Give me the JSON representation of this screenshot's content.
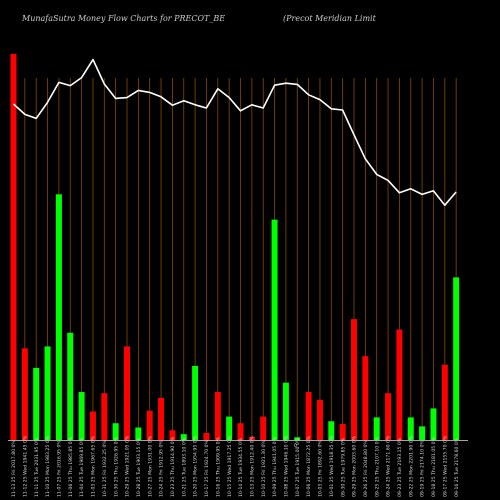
{
  "header": {
    "title_left": "MunafaSutra  Money Flow  Charts for PRECOT_BE",
    "title_right": "(Precot Meridian  Limit"
  },
  "colors": {
    "background": "#000000",
    "gridline": "#8a4a00",
    "up": "#00ff00",
    "down": "#ff0000",
    "line": "#ffffff",
    "axis": "#dddddd"
  },
  "chart_data": {
    "type": "bar",
    "title": "MunafaSutra  Money Flow  Charts for PRECOT_BE",
    "bar_ylim": [
      0,
      100
    ],
    "line_ylim": [
      0,
      100
    ],
    "bars": [
      {
        "value": 99,
        "dir": "down"
      },
      {
        "value": 23.5,
        "dir": "down"
      },
      {
        "value": 18.5,
        "dir": "up"
      },
      {
        "value": 24,
        "dir": "up"
      },
      {
        "value": 63,
        "dir": "up"
      },
      {
        "value": 27.5,
        "dir": "up"
      },
      {
        "value": 12.3,
        "dir": "up"
      },
      {
        "value": 7.3,
        "dir": "down"
      },
      {
        "value": 12,
        "dir": "down"
      },
      {
        "value": 4.3,
        "dir": "up"
      },
      {
        "value": 24,
        "dir": "down"
      },
      {
        "value": 3.2,
        "dir": "up"
      },
      {
        "value": 7.5,
        "dir": "down"
      },
      {
        "value": 10.8,
        "dir": "down"
      },
      {
        "value": 2.5,
        "dir": "down"
      },
      {
        "value": 1.5,
        "dir": "up"
      },
      {
        "value": 19,
        "dir": "up"
      },
      {
        "value": 1.8,
        "dir": "down"
      },
      {
        "value": 12.3,
        "dir": "down"
      },
      {
        "value": 6,
        "dir": "up"
      },
      {
        "value": 4.3,
        "dir": "down"
      },
      {
        "value": 0.8,
        "dir": "down"
      },
      {
        "value": 6,
        "dir": "down"
      },
      {
        "value": 56.5,
        "dir": "up"
      },
      {
        "value": 14.7,
        "dir": "up"
      },
      {
        "value": 0.7,
        "dir": "up"
      },
      {
        "value": 12.3,
        "dir": "down"
      },
      {
        "value": 10.3,
        "dir": "down"
      },
      {
        "value": 4.8,
        "dir": "up"
      },
      {
        "value": 4.1,
        "dir": "down"
      },
      {
        "value": 31,
        "dir": "down"
      },
      {
        "value": 21.5,
        "dir": "down"
      },
      {
        "value": 5.8,
        "dir": "up"
      },
      {
        "value": 12,
        "dir": "down"
      },
      {
        "value": 28.3,
        "dir": "down"
      },
      {
        "value": 5.8,
        "dir": "up"
      },
      {
        "value": 3.5,
        "dir": "up"
      },
      {
        "value": 8.1,
        "dir": "up"
      },
      {
        "value": 19.3,
        "dir": "down"
      },
      {
        "value": 41.7,
        "dir": "up"
      }
    ],
    "line": [
      84,
      81.4,
      80.4,
      84.4,
      89.4,
      88.6,
      90.6,
      95.1,
      89,
      85.4,
      85.6,
      87.4,
      86.9,
      85.8,
      83.7,
      84.8,
      83.8,
      83,
      87.8,
      85.6,
      82.3,
      83.8,
      83,
      88.7,
      89.2,
      88.9,
      86.3,
      85.1,
      82.8,
      82.5,
      76.3,
      70.3,
      66.4,
      64.9,
      61.8,
      62.8,
      61.4,
      62.3,
      58.7,
      62
    ],
    "x_tick_labels": [
      "11-13 25 Fri 2017.80 0%",
      "11-12 25 Wed 1941.45 0%",
      "11-11 25 Tue 2031.95 0%",
      "11-10 25 Mon 1983.25 0%",
      "11-07 25 Fri 2016.95 0%",
      "11-06 25 Thu 1985.85 0%",
      "11-04 25 Tue 1969.85 0%",
      "11-03 25 Mon 1967.65 0%",
      "10-31 25 Fri 1932.25 0%",
      "10-30 25 Thu 1926.95 0%",
      "10-29 25 Wed 1921.05 0%",
      "10-28 25 Tue 1903.15 0%",
      "10-27 25 Mon 1931.00 0%",
      "10-24 25 Fri 1912.95 0%",
      "10-23 25 Thu 1914.90 0%",
      "10-21 25 Tue 1893.10 0%",
      "10-20 25 Mon 1954.95 0%",
      "10-17 25 Fri 1924.70 0%",
      "10-16 25 Thu 1909.95 0%",
      "10-15 25 Wed 1917.25 0%",
      "10-14 25 Tue 1934.55 0%",
      "10-13 25 Mon 1912.40 0%",
      "10-10 25 Fri 1921.30 0%",
      "10-09 25 Thu 1941.05 0%",
      "10-08 25 Wed 1946.10 0%",
      "10-07 25 Tue 1915.00 0%",
      "10-06 25 Mon 1872.25 0%",
      "10-03 25 Fri 1892.60 0%",
      "10-01 25 Wed 1918.35 0%",
      "09-30 25 Tue 1979.85 0%",
      "09-29 25 Mon 2003.60 0%",
      "09-26 25 Fri 2048.80 0%",
      "09-25 25 Thu 2107.10 0%",
      "09-24 25 Wed 2171.60 0%",
      "09-23 25 Tue 2193.15 0%",
      "09-22 25 Mon 2201.90 0%",
      "09-19 25 Fri 2174.10 0%",
      "09-18 25 Thu 2181.05 0%",
      "09-17 25 Wed 2155.70 0%",
      "09-16 25 Tue 2178.60 0%"
    ],
    "x_axis_marker": "0"
  }
}
